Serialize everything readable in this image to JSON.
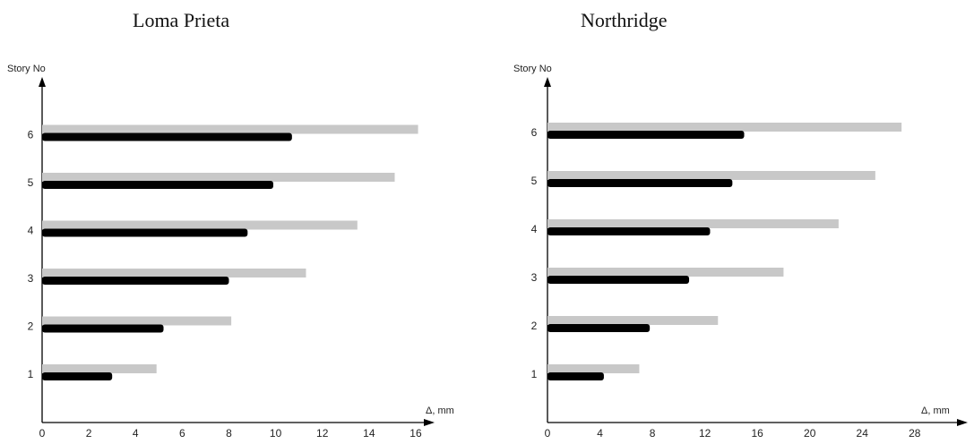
{
  "chart_data": [
    {
      "type": "bar",
      "orientation": "horizontal",
      "title": "Loma Prieta",
      "ylabel": "Story No",
      "xlabel": "Δ, mm",
      "categories": [
        "1",
        "2",
        "3",
        "4",
        "5",
        "6"
      ],
      "xticks": [
        "0",
        "2",
        "4",
        "6",
        "8",
        "10",
        "12",
        "14",
        "16"
      ],
      "xlim": [
        0,
        16.5
      ],
      "grid": false,
      "series": [
        {
          "color": "#c8c8c8",
          "values": [
            4.9,
            8.1,
            11.3,
            13.5,
            15.1,
            16.1
          ]
        },
        {
          "color": "#000000",
          "values": [
            3.0,
            5.2,
            8.0,
            8.8,
            9.9,
            10.7
          ]
        }
      ]
    },
    {
      "type": "bar",
      "orientation": "horizontal",
      "title": "Northridge",
      "ylabel": "Story No",
      "xlabel": "Δ, mm",
      "categories": [
        "1",
        "2",
        "3",
        "4",
        "5",
        "6"
      ],
      "xticks": [
        "0",
        "4",
        "8",
        "12",
        "16",
        "20",
        "24",
        "28"
      ],
      "xlim": [
        0,
        31.5
      ],
      "grid": false,
      "series": [
        {
          "color": "#c8c8c8",
          "values": [
            7.0,
            13.0,
            18.0,
            22.2,
            25.0,
            27.0
          ]
        },
        {
          "color": "#000000",
          "values": [
            4.3,
            7.8,
            10.8,
            12.4,
            14.1,
            15.0
          ]
        }
      ]
    }
  ]
}
